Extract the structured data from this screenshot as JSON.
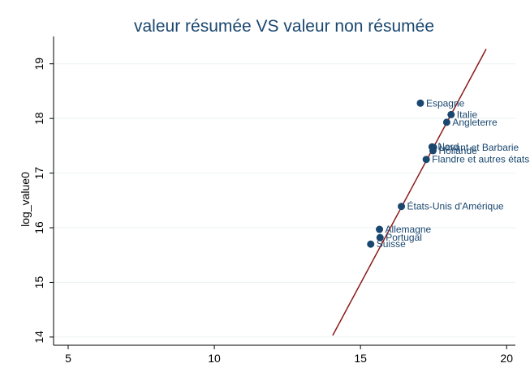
{
  "chart_data": {
    "type": "scatter",
    "title": "valeur résumée VS valeur non résumée",
    "xlabel": "",
    "ylabel": "log_value0",
    "xlim": [
      4.5,
      20.3
    ],
    "ylim": [
      13.85,
      19.5
    ],
    "xticks": [
      "5",
      "10",
      "15",
      "20"
    ],
    "yticks": [
      "14",
      "15",
      "16",
      "17",
      "18",
      "19"
    ],
    "grid": true,
    "legend": "none",
    "colors": {
      "points": "#1a476f",
      "line": "#8b1a1a",
      "grid": "#eaf2f3",
      "title": "#1a476f"
    },
    "points": [
      {
        "label": "Espagne",
        "x": 17.05,
        "y": 18.28
      },
      {
        "label": "Italie",
        "x": 18.1,
        "y": 18.07
      },
      {
        "label": "Angleterre",
        "x": 17.95,
        "y": 17.93
      },
      {
        "label": "Nord",
        "x": 17.45,
        "y": 17.48
      },
      {
        "label": "Levant et Barbarie",
        "x": 17.5,
        "y": 17.47
      },
      {
        "label": "Hollande",
        "x": 17.48,
        "y": 17.41
      },
      {
        "label": "Flandre et autres états de l'Europe",
        "x": 17.25,
        "y": 17.25
      },
      {
        "label": "États-Unis d'Amérique",
        "x": 16.4,
        "y": 16.39
      },
      {
        "label": "Allemagne",
        "x": 15.65,
        "y": 15.97
      },
      {
        "label": "Portugal",
        "x": 15.67,
        "y": 15.82
      },
      {
        "label": "Suisse",
        "x": 15.35,
        "y": 15.7
      }
    ],
    "fit_line": {
      "x": [
        14.05,
        19.3
      ],
      "y": [
        14.03,
        19.27
      ]
    }
  }
}
